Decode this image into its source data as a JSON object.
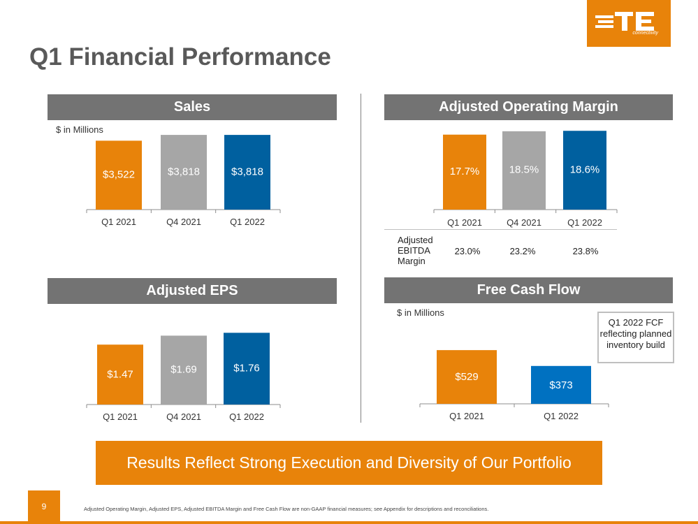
{
  "title": "Q1 Financial Performance",
  "logo": {
    "mark": "TE",
    "sub": "connectivity"
  },
  "colors": {
    "orange": "#e8830a",
    "gray": "#a6a6a6",
    "blue": "#00609f",
    "blue_fcf": "#0071c1",
    "header": "#737373"
  },
  "panels": {
    "sales": {
      "title": "Sales",
      "unit": "$ in Millions"
    },
    "aom": {
      "title": "Adjusted Operating Margin"
    },
    "eps": {
      "title": "Adjusted EPS"
    },
    "fcf": {
      "title": "Free Cash Flow",
      "unit": "$ in Millions"
    }
  },
  "ebitda": {
    "label": "Adjusted EBITDA Margin",
    "values": [
      "23.0%",
      "23.2%",
      "23.8%"
    ]
  },
  "callout": "Q1 2022 FCF reflecting planned inventory build",
  "banner": "Results Reflect Strong Execution and Diversity of Our Portfolio",
  "page_number": "9",
  "footnote": "Adjusted Operating Margin, Adjusted EPS, Adjusted EBITDA Margin and Free Cash Flow are non-GAAP financial measures; see Appendix for descriptions and reconciliations.",
  "chart_data": [
    {
      "id": "sales",
      "type": "bar",
      "title": "Sales",
      "ylabel": "$ in Millions",
      "categories": [
        "Q1 2021",
        "Q4 2021",
        "Q1 2022"
      ],
      "values": [
        3522,
        3818,
        3818
      ],
      "labels": [
        "$3,522",
        "$3,818",
        "$3,818"
      ],
      "colors": [
        "#e8830a",
        "#a6a6a6",
        "#00609f"
      ],
      "ylim": [
        0,
        4000
      ]
    },
    {
      "id": "aom",
      "type": "bar",
      "title": "Adjusted Operating Margin",
      "categories": [
        "Q1 2021",
        "Q4 2021",
        "Q1 2022"
      ],
      "values": [
        17.7,
        18.5,
        18.6
      ],
      "labels": [
        "17.7%",
        "18.5%",
        "18.6%"
      ],
      "colors": [
        "#e8830a",
        "#a6a6a6",
        "#00609f"
      ],
      "ylim": [
        0,
        19.3
      ]
    },
    {
      "id": "eps",
      "type": "bar",
      "title": "Adjusted EPS",
      "categories": [
        "Q1 2021",
        "Q4 2021",
        "Q1 2022"
      ],
      "values": [
        1.47,
        1.69,
        1.76
      ],
      "labels": [
        "$1.47",
        "$1.69",
        "$1.76"
      ],
      "colors": [
        "#e8830a",
        "#a6a6a6",
        "#00609f"
      ],
      "ylim": [
        0,
        1.8
      ]
    },
    {
      "id": "fcf",
      "type": "bar",
      "title": "Free Cash Flow",
      "ylabel": "$ in Millions",
      "categories": [
        "Q1 2021",
        "Q1 2022"
      ],
      "values": [
        529,
        373
      ],
      "labels": [
        "$529",
        "$373"
      ],
      "colors": [
        "#e8830a",
        "#0071c1"
      ],
      "ylim": [
        0,
        640
      ]
    }
  ]
}
